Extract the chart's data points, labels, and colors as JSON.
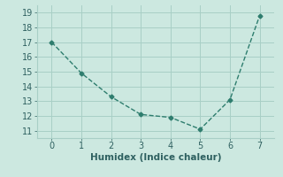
{
  "x": [
    0,
    1,
    2,
    3,
    4,
    5,
    6,
    7
  ],
  "y": [
    17.0,
    14.9,
    13.3,
    12.1,
    11.9,
    11.1,
    13.1,
    18.8
  ],
  "line_color": "#2e7d6e",
  "marker": "D",
  "marker_size": 2.5,
  "line_width": 1.0,
  "line_style": "--",
  "xlabel": "Humidex (Indice chaleur)",
  "ylabel": "",
  "xlim": [
    -0.5,
    7.5
  ],
  "ylim": [
    10.5,
    19.5
  ],
  "yticks": [
    11,
    12,
    13,
    14,
    15,
    16,
    17,
    18,
    19
  ],
  "xticks": [
    0,
    1,
    2,
    3,
    4,
    5,
    6,
    7
  ],
  "bg_color": "#cce8e0",
  "grid_color": "#a8cfc6",
  "font_color": "#2e6060",
  "xlabel_fontsize": 7.5,
  "tick_fontsize": 7
}
